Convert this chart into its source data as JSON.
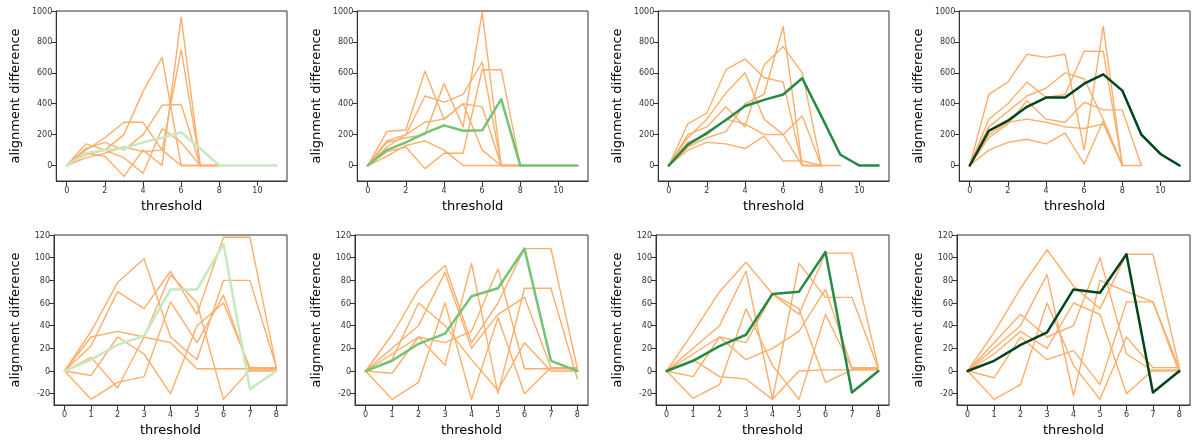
{
  "chart_data": [
    {
      "type": "line",
      "xlabel": "threshold",
      "ylabel": "alignment difference",
      "x": [
        0,
        1,
        2,
        3,
        4,
        5,
        6,
        7,
        8,
        9,
        10,
        11
      ],
      "xlim": [
        -0.55,
        11.55
      ],
      "ylim": [
        -100,
        1000
      ],
      "xticks": [
        0,
        2,
        4,
        6,
        8,
        10
      ],
      "yticks": [
        0,
        200,
        400,
        600,
        800,
        1000
      ],
      "series": [
        {
          "color": "#fdae6b",
          "values": [
            0,
            100,
            180,
            280,
            280,
            100,
            0,
            0,
            null,
            null,
            null,
            null
          ]
        },
        {
          "color": "#fdae6b",
          "values": [
            0,
            70,
            100,
            200,
            480,
            700,
            0,
            0,
            null,
            null,
            null,
            null
          ]
        },
        {
          "color": "#fdae6b",
          "values": [
            0,
            80,
            60,
            -70,
            100,
            0,
            960,
            0,
            0,
            null,
            null,
            null
          ]
        },
        {
          "color": "#fdae6b",
          "values": [
            0,
            110,
            150,
            100,
            200,
            390,
            395,
            0,
            0,
            null,
            null,
            null
          ]
        },
        {
          "color": "#fdae6b",
          "values": [
            0,
            50,
            80,
            120,
            90,
            100,
            750,
            0,
            0,
            null,
            null,
            null
          ]
        },
        {
          "color": "#fdae6b",
          "values": [
            0,
            140,
            100,
            50,
            -50,
            240,
            150,
            0,
            0,
            null,
            null,
            null
          ]
        },
        {
          "color": "#c7e9c0",
          "values": [
            0,
            80,
            100,
            110,
            150,
            180,
            215,
            110,
            0,
            0,
            0,
            0
          ]
        }
      ]
    },
    {
      "type": "line",
      "xlabel": "threshold",
      "ylabel": "alignment difference",
      "x": [
        0,
        1,
        2,
        3,
        4,
        5,
        6,
        7,
        8,
        9,
        10,
        11
      ],
      "xlim": [
        -0.55,
        11.55
      ],
      "ylim": [
        -100,
        1000
      ],
      "xticks": [
        0,
        2,
        4,
        6,
        8,
        10
      ],
      "yticks": [
        0,
        200,
        400,
        600,
        800,
        1000
      ],
      "series": [
        {
          "color": "#fdae6b",
          "values": [
            0,
            220,
            230,
            610,
            300,
            400,
            380,
            0,
            0,
            null,
            null,
            null
          ]
        },
        {
          "color": "#fdae6b",
          "values": [
            0,
            150,
            180,
            200,
            530,
            250,
            990,
            0,
            0,
            null,
            null,
            null
          ]
        },
        {
          "color": "#fdae6b",
          "values": [
            0,
            90,
            120,
            -20,
            80,
            80,
            620,
            620,
            0,
            null,
            null,
            null
          ]
        },
        {
          "color": "#fdae6b",
          "values": [
            0,
            120,
            200,
            280,
            300,
            400,
            100,
            0,
            0,
            null,
            null,
            null
          ]
        },
        {
          "color": "#fdae6b",
          "values": [
            0,
            60,
            130,
            160,
            100,
            0,
            0,
            0,
            0,
            null,
            null,
            null
          ]
        },
        {
          "color": "#fdae6b",
          "values": [
            0,
            160,
            200,
            450,
            410,
            460,
            670,
            0,
            0,
            null,
            null,
            null
          ]
        },
        {
          "color": "#74c476",
          "values": [
            0,
            100,
            150,
            210,
            260,
            225,
            228,
            430,
            0,
            0,
            0,
            0
          ]
        }
      ]
    },
    {
      "type": "line",
      "xlabel": "threshold",
      "ylabel": "alignment difference",
      "x": [
        0,
        1,
        2,
        3,
        4,
        5,
        6,
        7,
        8,
        9,
        10,
        11
      ],
      "xlim": [
        -0.55,
        11.55
      ],
      "ylim": [
        -100,
        1000
      ],
      "xticks": [
        0,
        2,
        4,
        6,
        8,
        10
      ],
      "yticks": [
        0,
        200,
        400,
        600,
        800,
        1000
      ],
      "series": [
        {
          "color": "#fdae6b",
          "values": [
            0,
            270,
            340,
            620,
            690,
            570,
            540,
            0,
            0,
            null,
            null,
            null
          ]
        },
        {
          "color": "#fdae6b",
          "values": [
            0,
            180,
            300,
            470,
            600,
            300,
            200,
            320,
            0,
            null,
            null,
            null
          ]
        },
        {
          "color": "#fdae6b",
          "values": [
            0,
            100,
            150,
            140,
            110,
            190,
            30,
            30,
            0,
            null,
            null,
            null
          ]
        },
        {
          "color": "#fdae6b",
          "values": [
            0,
            200,
            250,
            380,
            250,
            650,
            770,
            600,
            0,
            null,
            null,
            null
          ]
        },
        {
          "color": "#fdae6b",
          "values": [
            0,
            150,
            200,
            300,
            270,
            200,
            200,
            0,
            0,
            null,
            null,
            null
          ]
        },
        {
          "color": "#fdae6b",
          "values": [
            0,
            120,
            180,
            220,
            400,
            460,
            900,
            0,
            0,
            0,
            null,
            null
          ]
        },
        {
          "color": "#238b45",
          "values": [
            0,
            135,
            210,
            295,
            385,
            425,
            460,
            565,
            320,
            70,
            0,
            0
          ]
        }
      ]
    },
    {
      "type": "line",
      "xlabel": "threshold",
      "ylabel": "alignment difference",
      "x": [
        0,
        1,
        2,
        3,
        4,
        5,
        6,
        7,
        8,
        9,
        10,
        11
      ],
      "xlim": [
        -0.55,
        11.55
      ],
      "ylim": [
        -100,
        1000
      ],
      "xticks": [
        0,
        2,
        4,
        6,
        8,
        10
      ],
      "yticks": [
        0,
        200,
        400,
        600,
        800,
        1000
      ],
      "series": [
        {
          "color": "#fdae6b",
          "values": [
            0,
            460,
            540,
            720,
            700,
            720,
            100,
            900,
            0,
            null,
            null,
            null
          ]
        },
        {
          "color": "#fdae6b",
          "values": [
            0,
            100,
            150,
            170,
            140,
            210,
            10,
            290,
            0,
            null,
            null,
            null
          ]
        },
        {
          "color": "#fdae6b",
          "values": [
            0,
            300,
            400,
            540,
            440,
            460,
            740,
            740,
            0,
            null,
            null,
            null
          ]
        },
        {
          "color": "#fdae6b",
          "values": [
            0,
            180,
            270,
            420,
            300,
            280,
            410,
            360,
            360,
            0,
            null,
            null
          ]
        },
        {
          "color": "#fdae6b",
          "values": [
            0,
            250,
            350,
            450,
            500,
            600,
            560,
            300,
            0,
            0,
            null,
            null
          ]
        },
        {
          "color": "#fdae6b",
          "values": [
            0,
            200,
            280,
            300,
            280,
            250,
            240,
            270,
            0,
            null,
            null,
            null
          ]
        },
        {
          "color": "#00441b",
          "values": [
            0,
            225,
            290,
            380,
            440,
            440,
            530,
            590,
            485,
            200,
            75,
            0
          ]
        }
      ]
    },
    {
      "type": "line",
      "xlabel": "threshold",
      "ylabel": "alignment difference",
      "x": [
        0,
        1,
        2,
        3,
        4,
        5,
        6,
        7,
        8
      ],
      "xlim": [
        -0.4,
        8.4
      ],
      "ylim": [
        -30,
        120
      ],
      "xticks": [
        0,
        1,
        2,
        3,
        4,
        5,
        6,
        7,
        8
      ],
      "yticks": [
        -20,
        0,
        20,
        40,
        60,
        80,
        100,
        120
      ],
      "series": [
        {
          "color": "#fdae6b",
          "values": [
            0,
            35,
            78,
            99,
            30,
            10,
            80,
            80,
            3
          ]
        },
        {
          "color": "#fdae6b",
          "values": [
            0,
            22,
            70,
            55,
            88,
            50,
            118,
            118,
            3
          ]
        },
        {
          "color": "#fdae6b",
          "values": [
            0,
            -4,
            30,
            15,
            -20,
            40,
            60,
            3,
            3
          ]
        },
        {
          "color": "#fdae6b",
          "values": [
            0,
            12,
            -15,
            30,
            85,
            60,
            -25,
            1,
            1
          ]
        },
        {
          "color": "#fdae6b",
          "values": [
            0,
            30,
            35,
            30,
            25,
            2,
            2,
            2,
            2
          ]
        },
        {
          "color": "#fdae6b",
          "values": [
            0,
            -25,
            -10,
            -5,
            61,
            25,
            67,
            0,
            0
          ]
        },
        {
          "color": "#c7e9c0",
          "values": [
            0,
            10,
            23,
            31,
            72,
            72,
            112,
            -16,
            0
          ]
        }
      ]
    },
    {
      "type": "line",
      "xlabel": "threshold",
      "ylabel": "alignment difference",
      "x": [
        0,
        1,
        2,
        3,
        4,
        5,
        6,
        7,
        8
      ],
      "xlim": [
        -0.4,
        8.4
      ],
      "ylim": [
        -30,
        120
      ],
      "xticks": [
        0,
        1,
        2,
        3,
        4,
        5,
        6,
        7,
        8
      ],
      "yticks": [
        -20,
        0,
        20,
        40,
        60,
        80,
        100,
        120
      ],
      "series": [
        {
          "color": "#fdae6b",
          "values": [
            0,
            32,
            72,
            93,
            25,
            60,
            108,
            108,
            2
          ]
        },
        {
          "color": "#fdae6b",
          "values": [
            0,
            20,
            40,
            87,
            20,
            50,
            65,
            3,
            3
          ]
        },
        {
          "color": "#fdae6b",
          "values": [
            0,
            -2,
            30,
            5,
            95,
            -20,
            73,
            73,
            -7
          ]
        },
        {
          "color": "#fdae6b",
          "values": [
            0,
            -25,
            -10,
            60,
            -25,
            47,
            -20,
            3,
            3
          ]
        },
        {
          "color": "#fdae6b",
          "values": [
            0,
            15,
            30,
            25,
            35,
            90,
            2,
            2,
            2
          ]
        },
        {
          "color": "#fdae6b",
          "values": [
            0,
            10,
            60,
            40,
            10,
            -17,
            25,
            0,
            0
          ]
        },
        {
          "color": "#74c476",
          "values": [
            0,
            9,
            24,
            33,
            66,
            73,
            108,
            9,
            0
          ]
        }
      ]
    },
    {
      "type": "line",
      "xlabel": "threshold",
      "ylabel": "alignment difference",
      "x": [
        0,
        1,
        2,
        3,
        4,
        5,
        6,
        7,
        8
      ],
      "xlim": [
        -0.4,
        8.4
      ],
      "ylim": [
        -30,
        120
      ],
      "xticks": [
        0,
        1,
        2,
        3,
        4,
        5,
        6,
        7,
        8
      ],
      "yticks": [
        -20,
        0,
        20,
        40,
        60,
        80,
        100,
        120
      ],
      "series": [
        {
          "color": "#fdae6b",
          "values": [
            0,
            34,
            70,
            96,
            68,
            50,
            104,
            104,
            3
          ]
        },
        {
          "color": "#fdae6b",
          "values": [
            0,
            20,
            40,
            88,
            -25,
            95,
            65,
            65,
            2
          ]
        },
        {
          "color": "#fdae6b",
          "values": [
            0,
            -5,
            30,
            10,
            20,
            35,
            72,
            3,
            3
          ]
        },
        {
          "color": "#fdae6b",
          "values": [
            0,
            -24,
            -12,
            55,
            5,
            -25,
            50,
            2,
            2
          ]
        },
        {
          "color": "#fdae6b",
          "values": [
            0,
            15,
            30,
            25,
            68,
            55,
            -10,
            1,
            1
          ]
        },
        {
          "color": "#fdae6b",
          "values": [
            0,
            10,
            -5,
            -7,
            -25,
            0,
            1,
            1,
            1
          ]
        },
        {
          "color": "#238b45",
          "values": [
            0,
            9,
            22,
            32,
            68,
            70,
            105,
            -19,
            0
          ]
        }
      ]
    },
    {
      "type": "line",
      "xlabel": "threshold",
      "ylabel": "alignment difference",
      "x": [
        0,
        1,
        2,
        3,
        4,
        5,
        6,
        7,
        8
      ],
      "xlim": [
        -0.4,
        8.4
      ],
      "ylim": [
        -30,
        120
      ],
      "xticks": [
        0,
        1,
        2,
        3,
        4,
        5,
        6,
        7,
        8
      ],
      "yticks": [
        -20,
        0,
        20,
        40,
        60,
        80,
        100,
        120
      ],
      "series": [
        {
          "color": "#fdae6b",
          "values": [
            0,
            34,
            73,
            107,
            75,
            55,
            103,
            103,
            3
          ]
        },
        {
          "color": "#fdae6b",
          "values": [
            0,
            20,
            40,
            85,
            -22,
            80,
            70,
            61,
            -2
          ]
        },
        {
          "color": "#fdae6b",
          "values": [
            0,
            -6,
            30,
            10,
            18,
            -12,
            61,
            61,
            2
          ]
        },
        {
          "color": "#fdae6b",
          "values": [
            0,
            -25,
            -12,
            60,
            5,
            -25,
            30,
            3,
            3
          ]
        },
        {
          "color": "#fdae6b",
          "values": [
            0,
            15,
            35,
            20,
            60,
            50,
            -20,
            1,
            1
          ]
        },
        {
          "color": "#fdae6b",
          "values": [
            0,
            25,
            50,
            30,
            40,
            100,
            15,
            0,
            0
          ]
        },
        {
          "color": "#00441b",
          "values": [
            0,
            9,
            23,
            34,
            72,
            69,
            103,
            -19,
            0
          ]
        }
      ]
    }
  ]
}
